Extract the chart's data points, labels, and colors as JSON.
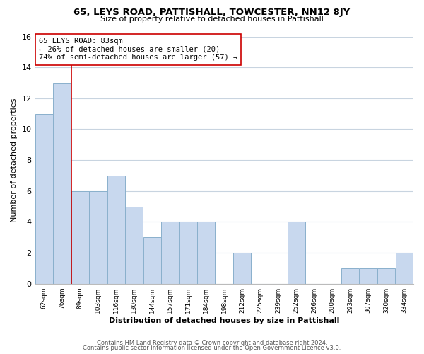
{
  "title": "65, LEYS ROAD, PATTISHALL, TOWCESTER, NN12 8JY",
  "subtitle": "Size of property relative to detached houses in Pattishall",
  "xlabel": "Distribution of detached houses by size in Pattishall",
  "ylabel": "Number of detached properties",
  "bin_labels": [
    "62sqm",
    "76sqm",
    "89sqm",
    "103sqm",
    "116sqm",
    "130sqm",
    "144sqm",
    "157sqm",
    "171sqm",
    "184sqm",
    "198sqm",
    "212sqm",
    "225sqm",
    "239sqm",
    "252sqm",
    "266sqm",
    "280sqm",
    "293sqm",
    "307sqm",
    "320sqm",
    "334sqm"
  ],
  "bar_heights": [
    11,
    13,
    6,
    6,
    7,
    5,
    3,
    4,
    4,
    4,
    0,
    2,
    0,
    0,
    4,
    0,
    0,
    1,
    1,
    1,
    2
  ],
  "bar_color": "#c8d8ee",
  "bar_edge_color": "#8ab0cc",
  "marker_line_color": "#cc0000",
  "annotation_text": "65 LEYS ROAD: 83sqm\n← 26% of detached houses are smaller (20)\n74% of semi-detached houses are larger (57) →",
  "annotation_box_color": "#ffffff",
  "annotation_box_edge": "#cc0000",
  "ylim": [
    0,
    16
  ],
  "yticks": [
    0,
    2,
    4,
    6,
    8,
    10,
    12,
    14,
    16
  ],
  "footer_line1": "Contains HM Land Registry data © Crown copyright and database right 2024.",
  "footer_line2": "Contains public sector information licensed under the Open Government Licence v3.0.",
  "background_color": "#ffffff",
  "grid_color": "#c8d4e0"
}
